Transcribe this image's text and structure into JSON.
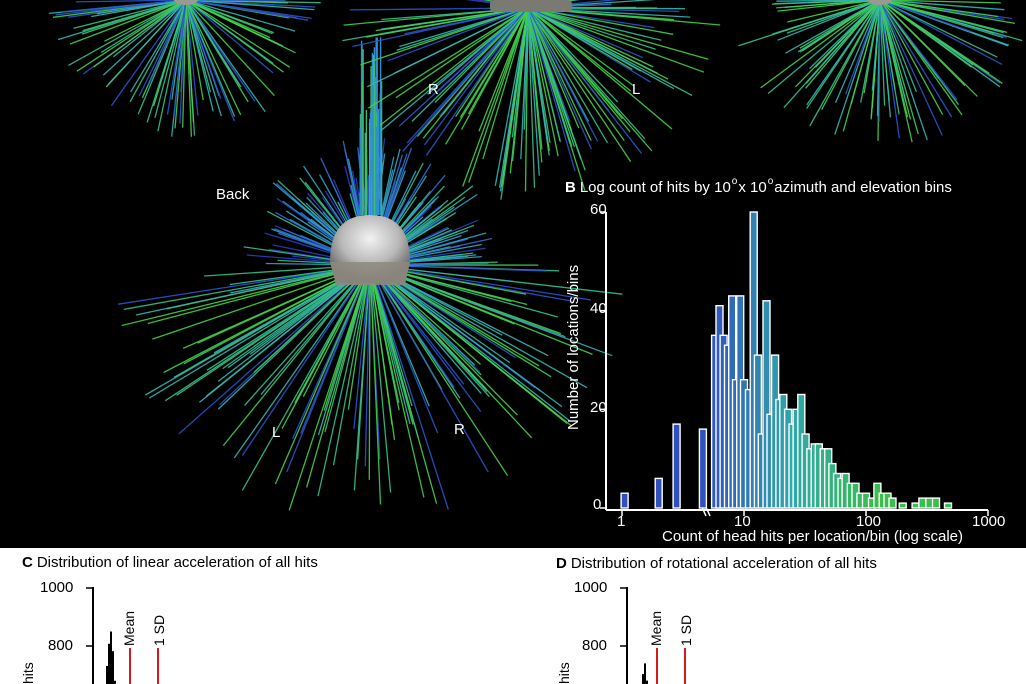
{
  "top": {
    "head_labels": {
      "r_top": "R",
      "l_top": "L",
      "back": "Back",
      "l_bottom": "L",
      "r_bottom": "R"
    }
  },
  "panel_b": {
    "letter": "B",
    "title_parts": [
      "Log count of hits by 10",
      "x 10",
      "azimuth and elevation bins"
    ],
    "degree": "o",
    "ylabel": "Number of locations/bins",
    "xlabel": "Count of head hits per location/bin (log scale)",
    "yticks": [
      "0",
      "20",
      "40",
      "60"
    ],
    "xticks": [
      "1",
      "10",
      "100",
      "1000"
    ]
  },
  "panel_c": {
    "letter": "C",
    "title": "Distribution of linear acceleration of all hits",
    "yticks": [
      "1000",
      "800"
    ],
    "mean_label": "Mean",
    "sd_label": "1 SD",
    "ylabel_partial": "hits"
  },
  "panel_d": {
    "letter": "D",
    "title": "Distribution of rotational acceleration of all hits",
    "yticks": [
      "1000",
      "800"
    ],
    "mean_label": "Mean",
    "sd_label": "1 SD",
    "ylabel_partial": "hits"
  },
  "colors": {
    "bar_blue": "#2f5fbf",
    "bar_teal": "#2fa3a8",
    "bar_green": "#39b54a",
    "red_line": "#d7191c",
    "background": "#000000"
  },
  "chart_data": [
    {
      "type": "bar",
      "title": "Log count of hits by 10° x 10° azimuth and elevation bins",
      "xlabel": "Count of head hits per location/bin (log scale)",
      "ylabel": "Number of locations/bins",
      "xscale": "log",
      "xlim": [
        1,
        1000
      ],
      "ylim": [
        0,
        60
      ],
      "bins": [
        {
          "x": 1.05,
          "count": 3
        },
        {
          "x": 2.0,
          "count": 6
        },
        {
          "x": 2.8,
          "count": 17
        },
        {
          "x": 4.6,
          "count": 16
        },
        {
          "x": 5.8,
          "count": 35
        },
        {
          "x": 6.3,
          "count": 41
        },
        {
          "x": 6.8,
          "count": 35
        },
        {
          "x": 7.4,
          "count": 33
        },
        {
          "x": 8.0,
          "count": 43
        },
        {
          "x": 8.6,
          "count": 26
        },
        {
          "x": 9.3,
          "count": 43
        },
        {
          "x": 10.0,
          "count": 26
        },
        {
          "x": 11.0,
          "count": 24
        },
        {
          "x": 12.0,
          "count": 60
        },
        {
          "x": 13.0,
          "count": 31
        },
        {
          "x": 14.0,
          "count": 15
        },
        {
          "x": 15.3,
          "count": 42
        },
        {
          "x": 16.5,
          "count": 19
        },
        {
          "x": 18.0,
          "count": 31
        },
        {
          "x": 19.5,
          "count": 22
        },
        {
          "x": 21.0,
          "count": 23
        },
        {
          "x": 23.0,
          "count": 20
        },
        {
          "x": 25.0,
          "count": 17
        },
        {
          "x": 27.0,
          "count": 20
        },
        {
          "x": 29.5,
          "count": 23
        },
        {
          "x": 32.0,
          "count": 15
        },
        {
          "x": 35.0,
          "count": 12
        },
        {
          "x": 38.0,
          "count": 13
        },
        {
          "x": 41.0,
          "count": 13
        },
        {
          "x": 45.0,
          "count": 12
        },
        {
          "x": 49.0,
          "count": 12
        },
        {
          "x": 53.0,
          "count": 9
        },
        {
          "x": 58.0,
          "count": 7
        },
        {
          "x": 63.0,
          "count": 6
        },
        {
          "x": 68.0,
          "count": 7
        },
        {
          "x": 75.0,
          "count": 5
        },
        {
          "x": 82.0,
          "count": 5
        },
        {
          "x": 90.0,
          "count": 3
        },
        {
          "x": 100.0,
          "count": 3
        },
        {
          "x": 112.0,
          "count": 2
        },
        {
          "x": 124.0,
          "count": 5
        },
        {
          "x": 137.0,
          "count": 3
        },
        {
          "x": 150.0,
          "count": 3
        },
        {
          "x": 165.0,
          "count": 2
        },
        {
          "x": 200.0,
          "count": 1
        },
        {
          "x": 255.0,
          "count": 1
        },
        {
          "x": 290.0,
          "count": 2
        },
        {
          "x": 330.0,
          "count": 2
        },
        {
          "x": 375.0,
          "count": 2
        },
        {
          "x": 470.0,
          "count": 1
        }
      ]
    },
    {
      "type": "bar",
      "title": "Distribution of linear acceleration of all hits",
      "ylim": [
        0,
        1000
      ],
      "yticks": [
        1000,
        800
      ],
      "visible_peak": 850,
      "annotations": [
        "Mean",
        "1 SD"
      ]
    },
    {
      "type": "bar",
      "title": "Distribution of rotational acceleration of all hits",
      "ylim": [
        0,
        1000
      ],
      "yticks": [
        1000,
        800
      ],
      "visible_peak": 740,
      "annotations": [
        "Mean",
        "1 SD"
      ]
    }
  ]
}
